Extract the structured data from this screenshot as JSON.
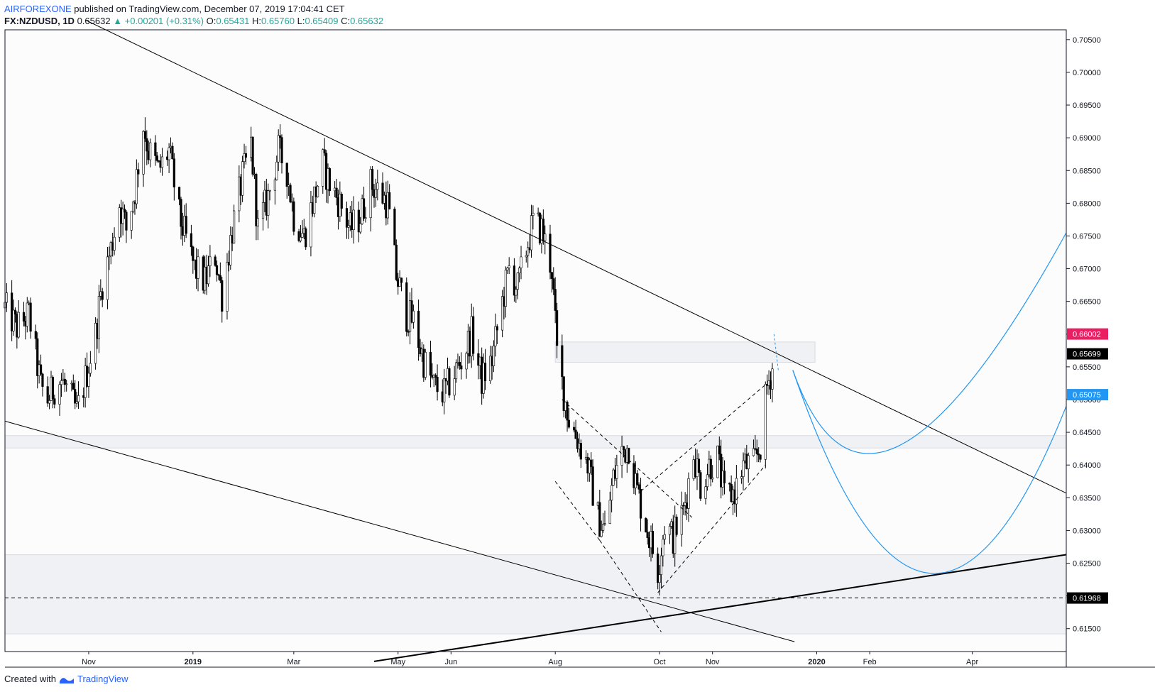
{
  "header": {
    "author": "AIRFOREXONE",
    "published_text": "published on TradingView.com, December 07, 2019 17:04:41 CET"
  },
  "ohlc": {
    "symbol": "FX:NZDUSD, 1D",
    "last": "0.65632",
    "change": "▲ +0.00201 (+0.31%)",
    "o_label": "O:",
    "o": "0.65431",
    "h_label": "H:",
    "h": "0.65760",
    "l_label": "L:",
    "l": "0.65409",
    "c_label": "C:",
    "c": "0.65632"
  },
  "footer": {
    "created_with": "Created with",
    "brand": "TradingView"
  },
  "colors": {
    "up": "#ffffff",
    "down": "#000000",
    "wick": "#000000",
    "blue": "#2196f3",
    "red_badge": "#e91e63",
    "black_badge": "#000000",
    "zone": "#f0f1f5"
  },
  "chart_data": {
    "type": "candlestick",
    "y_axis": {
      "ticks": [
        "0.70500",
        "0.70000",
        "0.69500",
        "0.69000",
        "0.68500",
        "0.68000",
        "0.67500",
        "0.67000",
        "0.66500",
        "0.66000",
        "0.65500",
        "0.65000",
        "0.64500",
        "0.64000",
        "0.63500",
        "0.63000",
        "0.62500",
        "0.62000",
        "0.61500"
      ],
      "range": [
        0.6115,
        0.7065
      ]
    },
    "x_axis": {
      "labels": [
        "Nov",
        "2019",
        "Mar",
        "May",
        "Jun",
        "Aug",
        "Oct",
        "Nov",
        "2020",
        "Feb",
        "Apr"
      ],
      "bold": [
        "2019",
        "2020"
      ],
      "dates": [
        "2018-11-01",
        "2019-01-01",
        "2019-03-01",
        "2019-05-01",
        "2019-06-01",
        "2019-08-01",
        "2019-10-01",
        "2019-11-01",
        "2020-01-01",
        "2020-02-01",
        "2020-04-01"
      ],
      "range": [
        "2018-09-13",
        "2020-05-26"
      ]
    },
    "price_badges": [
      {
        "value": "0.66002",
        "style": "red"
      },
      {
        "value": "0.65699",
        "style": "black"
      },
      {
        "value": "0.65075",
        "style": "blue"
      },
      {
        "value": "0.61968",
        "style": "black"
      }
    ],
    "close_path": [
      [
        "2018-09-13",
        0.664
      ],
      [
        "2018-09-20",
        0.661
      ],
      [
        "2018-09-27",
        0.663
      ],
      [
        "2018-10-04",
        0.652
      ],
      [
        "2018-10-08",
        0.65
      ],
      [
        "2018-10-12",
        0.652
      ],
      [
        "2018-10-16",
        0.653
      ],
      [
        "2018-10-22",
        0.65
      ],
      [
        "2018-10-25",
        0.648
      ],
      [
        "2018-10-29",
        0.652
      ],
      [
        "2018-11-05",
        0.66
      ],
      [
        "2018-11-09",
        0.668
      ],
      [
        "2018-11-14",
        0.673
      ],
      [
        "2018-11-19",
        0.68
      ],
      [
        "2018-11-23",
        0.676
      ],
      [
        "2018-11-28",
        0.682
      ],
      [
        "2018-12-03",
        0.692
      ],
      [
        "2018-12-06",
        0.688
      ],
      [
        "2018-12-12",
        0.685
      ],
      [
        "2018-12-18",
        0.688
      ],
      [
        "2018-12-24",
        0.678
      ],
      [
        "2019-01-02",
        0.67
      ],
      [
        "2019-01-08",
        0.668
      ],
      [
        "2019-01-14",
        0.672
      ],
      [
        "2019-01-18",
        0.666
      ],
      [
        "2019-01-24",
        0.676
      ],
      [
        "2019-01-30",
        0.684
      ],
      [
        "2019-02-04",
        0.689
      ],
      [
        "2019-02-08",
        0.676
      ],
      [
        "2019-02-14",
        0.681
      ],
      [
        "2019-02-20",
        0.688
      ],
      [
        "2019-02-25",
        0.685
      ],
      [
        "2019-03-01",
        0.678
      ],
      [
        "2019-03-07",
        0.675
      ],
      [
        "2019-03-12",
        0.68
      ],
      [
        "2019-03-18",
        0.686
      ],
      [
        "2019-03-22",
        0.683
      ],
      [
        "2019-03-28",
        0.68
      ],
      [
        "2019-04-03",
        0.676
      ],
      [
        "2019-04-09",
        0.678
      ],
      [
        "2019-04-15",
        0.683
      ],
      [
        "2019-04-19",
        0.682
      ],
      [
        "2019-04-25",
        0.68
      ],
      [
        "2019-04-30",
        0.669
      ],
      [
        "2019-05-06",
        0.663
      ],
      [
        "2019-05-10",
        0.662
      ],
      [
        "2019-05-16",
        0.656
      ],
      [
        "2019-05-22",
        0.652
      ],
      [
        "2019-05-28",
        0.651
      ],
      [
        "2019-06-03",
        0.654
      ],
      [
        "2019-06-07",
        0.656
      ],
      [
        "2019-06-13",
        0.66
      ],
      [
        "2019-06-19",
        0.653
      ],
      [
        "2019-06-25",
        0.656
      ],
      [
        "2019-07-01",
        0.665
      ],
      [
        "2019-07-05",
        0.67
      ],
      [
        "2019-07-10",
        0.667
      ],
      [
        "2019-07-15",
        0.673
      ],
      [
        "2019-07-19",
        0.677
      ],
      [
        "2019-07-24",
        0.676
      ],
      [
        "2019-07-30",
        0.67
      ],
      [
        "2019-08-02",
        0.657
      ],
      [
        "2019-08-06",
        0.651
      ],
      [
        "2019-08-09",
        0.647
      ],
      [
        "2019-08-14",
        0.644
      ],
      [
        "2019-08-20",
        0.64
      ],
      [
        "2019-08-26",
        0.632
      ],
      [
        "2019-08-30",
        0.63
      ],
      [
        "2019-09-04",
        0.638
      ],
      [
        "2019-09-09",
        0.642
      ],
      [
        "2019-09-13",
        0.643
      ],
      [
        "2019-09-18",
        0.636
      ],
      [
        "2019-09-24",
        0.63
      ],
      [
        "2019-09-30",
        0.624
      ],
      [
        "2019-10-04",
        0.631
      ],
      [
        "2019-10-09",
        0.629
      ],
      [
        "2019-10-15",
        0.633
      ],
      [
        "2019-10-21",
        0.642
      ],
      [
        "2019-10-25",
        0.637
      ],
      [
        "2019-10-30",
        0.64
      ],
      [
        "2019-11-04",
        0.641
      ],
      [
        "2019-11-08",
        0.635
      ],
      [
        "2019-11-14",
        0.636
      ],
      [
        "2019-11-19",
        0.64
      ],
      [
        "2019-11-25",
        0.64
      ],
      [
        "2019-11-29",
        0.643
      ],
      [
        "2019-12-03",
        0.652
      ],
      [
        "2019-12-07",
        0.656
      ]
    ],
    "zones": [
      {
        "from": "2018-09-13",
        "to": "2020-05-26",
        "y1": 0.6445,
        "y2": 0.6426
      },
      {
        "from": "2018-09-13",
        "to": "2020-05-26",
        "y1": 0.6263,
        "y2": 0.6142
      },
      {
        "from": "2019-08-01",
        "to": "2019-12-31",
        "y1": 0.6588,
        "y2": 0.6557
      }
    ],
    "trendlines": [
      {
        "p1": [
          "2018-10-30",
          0.708
        ],
        "p2": [
          "2020-05-26",
          0.6357
        ],
        "style": "solid",
        "width": 1
      },
      {
        "p1": [
          "2018-09-13",
          0.6467
        ],
        "p2": [
          "2019-12-19",
          0.613
        ],
        "style": "solid",
        "width": 1
      },
      {
        "p1": [
          "2019-04-17",
          0.61
        ],
        "p2": [
          "2020-05-26",
          0.6263
        ],
        "style": "solid",
        "width": 2
      },
      {
        "p1": [
          "2018-09-13",
          0.6197
        ],
        "p2": [
          "2020-05-26",
          0.6197
        ],
        "style": "dashed",
        "width": 1
      }
    ],
    "pattern_lines": [
      [
        [
          "2019-08-01",
          0.6375
        ],
        [
          "2019-08-27",
          0.6285
        ]
      ],
      [
        [
          "2019-08-05",
          0.65
        ],
        [
          "2019-10-20",
          0.632
        ]
      ],
      [
        [
          "2019-08-27",
          0.6285
        ],
        [
          "2019-10-02",
          0.6145
        ]
      ],
      [
        [
          "2019-09-30",
          0.6205
        ],
        [
          "2019-12-02",
          0.64
        ]
      ],
      [
        [
          "2019-09-20",
          0.636
        ],
        [
          "2019-12-03",
          0.6525
        ]
      ]
    ],
    "projections": [
      [
        [
          "2019-12-18",
          0.6545
        ],
        [
          "2020-02-01",
          0.643
        ],
        [
          "2020-05-26",
          0.6755
        ]
      ],
      [
        [
          "2019-12-18",
          0.6545
        ],
        [
          "2020-03-05",
          0.6235
        ],
        [
          "2020-05-26",
          0.649
        ]
      ]
    ],
    "projection_marker": {
      "date": "2019-12-07",
      "from": 0.66,
      "to": 0.6545
    }
  }
}
